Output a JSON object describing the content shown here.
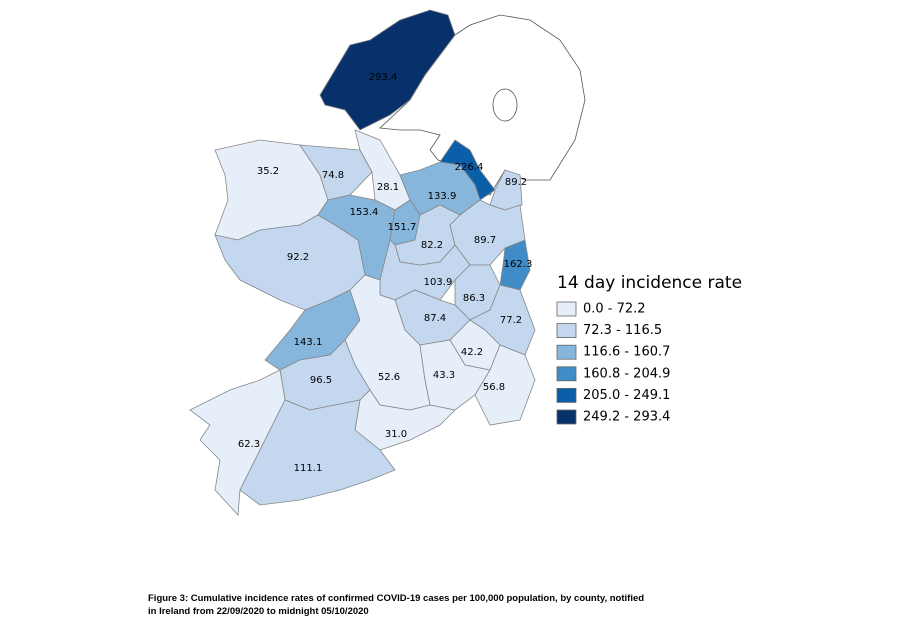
{
  "map": {
    "regions": [
      {
        "label": "293.4",
        "color": "#08306b"
      },
      {
        "label": "35.2",
        "color": "#e6eff9"
      },
      {
        "label": "74.8",
        "color": "#c3d7ee"
      },
      {
        "label": "28.1",
        "color": "#e6eff9"
      },
      {
        "label": "226.4",
        "color": "#0b5ea8"
      },
      {
        "label": "133.9",
        "color": "#86b6dc"
      },
      {
        "label": "89.2",
        "color": "#c3d7ee"
      },
      {
        "label": "153.4",
        "color": "#86b6dc"
      },
      {
        "label": "151.7",
        "color": "#86b6dc"
      },
      {
        "label": "82.2",
        "color": "#c3d7ee"
      },
      {
        "label": "89.7",
        "color": "#c3d7ee"
      },
      {
        "label": "162.3",
        "color": "#3f8cc7"
      },
      {
        "label": "92.2",
        "color": "#c3d7ee"
      },
      {
        "label": "103.9",
        "color": "#c3d7ee"
      },
      {
        "label": "86.3",
        "color": "#c3d7ee"
      },
      {
        "label": "87.4",
        "color": "#c3d7ee"
      },
      {
        "label": "77.2",
        "color": "#c3d7ee"
      },
      {
        "label": "143.1",
        "color": "#86b6dc"
      },
      {
        "label": "42.2",
        "color": "#e6eff9"
      },
      {
        "label": "52.6",
        "color": "#e6eff9"
      },
      {
        "label": "43.3",
        "color": "#e6eff9"
      },
      {
        "label": "96.5",
        "color": "#c3d7ee"
      },
      {
        "label": "56.8",
        "color": "#e6eff9"
      },
      {
        "label": "62.3",
        "color": "#e6eff9"
      },
      {
        "label": "31.0",
        "color": "#e6eff9"
      },
      {
        "label": "111.1",
        "color": "#c3d7ee"
      }
    ],
    "legend": {
      "title": "14 day incidence rate",
      "items": [
        {
          "label": "0.0 - 72.2",
          "color": "#e6eff9"
        },
        {
          "label": "72.3 - 116.5",
          "color": "#c3d7ee"
        },
        {
          "label": "116.6 - 160.7",
          "color": "#86b6dc"
        },
        {
          "label": "160.8 - 204.9",
          "color": "#3f8cc7"
        },
        {
          "label": "205.0 - 249.1",
          "color": "#0b5ea8"
        },
        {
          "label": "249.2 - 293.4",
          "color": "#08306b"
        }
      ]
    }
  },
  "caption": {
    "lines": [
      "Figure 3: Cumulative incidence rates of confirmed COVID-19 cases per 100,000 population, by county, notified",
      "in Ireland from 22/09/2020 to midnight 05/10/2020"
    ]
  }
}
